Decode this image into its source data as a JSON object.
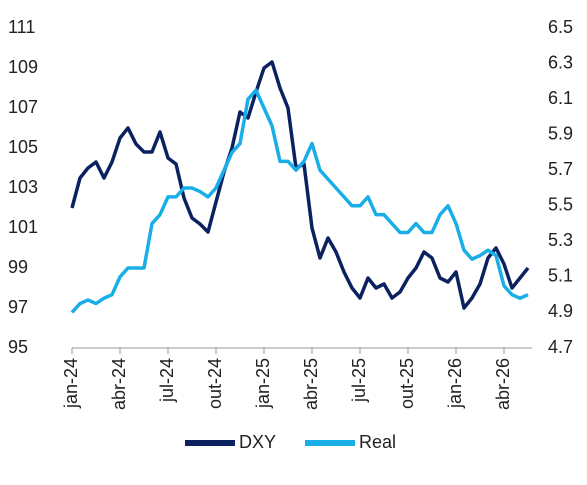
{
  "chart_data": {
    "type": "line",
    "categories": [
      "jan-24",
      null,
      null,
      null,
      null,
      null,
      "abr-24",
      null,
      null,
      null,
      null,
      null,
      "jul-24",
      null,
      null,
      null,
      null,
      null,
      "out-24",
      null,
      null,
      null,
      null,
      null,
      "jan-25",
      null,
      null,
      null,
      null,
      null,
      "abr-25",
      null,
      null,
      null,
      null,
      null,
      "jul-25",
      null,
      null,
      null,
      null,
      null,
      "out-25",
      null,
      null,
      null,
      null,
      null,
      "jan-26",
      null,
      null,
      null,
      null,
      null,
      "abr-26",
      null,
      null,
      null
    ],
    "series": [
      {
        "name": "DXY",
        "color": "#0b2160",
        "axis": "y",
        "values": [
          102,
          103.5,
          104,
          104.3,
          103.5,
          104.3,
          105.5,
          106,
          105.2,
          104.8,
          104.8,
          105.8,
          104.5,
          104.2,
          102.5,
          101.5,
          101.2,
          100.8,
          102.3,
          103.8,
          105,
          106.8,
          106.5,
          107.8,
          109,
          109.3,
          108,
          107,
          104,
          104.2,
          101,
          99.5,
          100.5,
          99.8,
          98.8,
          98,
          97.5,
          98.5,
          98,
          98.2,
          97.5,
          97.8,
          98.5,
          99,
          99.8,
          99.5,
          98.5,
          98.3,
          98.8,
          97,
          97.5,
          98.2,
          99.5,
          100,
          99.2,
          98,
          98.5,
          99
        ]
      },
      {
        "name": "Real",
        "color": "#1aaee8",
        "axis": "y2",
        "values": [
          4.9,
          4.95,
          4.97,
          4.95,
          4.98,
          5.0,
          5.1,
          5.15,
          5.15,
          5.15,
          5.4,
          5.45,
          5.55,
          5.55,
          5.6,
          5.6,
          5.58,
          5.55,
          5.6,
          5.7,
          5.8,
          5.85,
          6.1,
          6.15,
          6.05,
          5.95,
          5.75,
          5.75,
          5.7,
          5.75,
          5.85,
          5.7,
          5.65,
          5.6,
          5.55,
          5.5,
          5.5,
          5.55,
          5.45,
          5.45,
          5.4,
          5.35,
          5.35,
          5.4,
          5.35,
          5.35,
          5.45,
          5.5,
          5.4,
          5.25,
          5.2,
          5.22,
          5.25,
          5.22,
          5.05,
          5.0,
          4.98,
          5.0
        ]
      }
    ],
    "ylim": [
      95,
      111
    ],
    "yticks": [
      95,
      97,
      99,
      101,
      103,
      105,
      107,
      109,
      111
    ],
    "y2lim": [
      4.7,
      6.5
    ],
    "y2ticks": [
      4.7,
      4.9,
      5.1,
      5.3,
      5.5,
      5.7,
      5.9,
      6.1,
      6.3,
      6.5
    ],
    "legend": "bottom"
  }
}
